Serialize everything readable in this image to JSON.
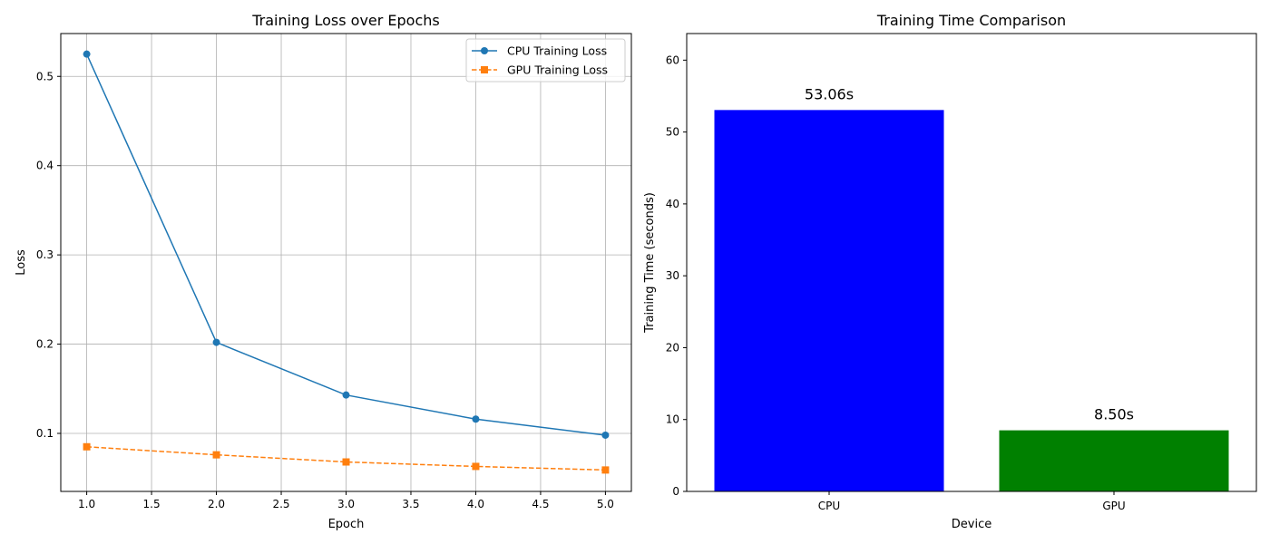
{
  "chart_data": [
    {
      "type": "line",
      "title": "Training Loss over Epochs",
      "xlabel": "Epoch",
      "ylabel": "Loss",
      "xlim": [
        0.8,
        5.2
      ],
      "ylim": [
        0.035,
        0.548
      ],
      "xticks": [
        1.0,
        1.5,
        2.0,
        2.5,
        3.0,
        3.5,
        4.0,
        4.5,
        5.0
      ],
      "xtick_labels": [
        "1.0",
        "1.5",
        "2.0",
        "2.5",
        "3.0",
        "3.5",
        "4.0",
        "4.5",
        "5.0"
      ],
      "yticks": [
        0.1,
        0.2,
        0.3,
        0.4,
        0.5
      ],
      "ytick_labels": [
        "0.1",
        "0.2",
        "0.3",
        "0.4",
        "0.5"
      ],
      "grid": true,
      "legend": "top-right",
      "x": [
        1,
        2,
        3,
        4,
        5
      ],
      "series": [
        {
          "name": "CPU Training Loss",
          "values": [
            0.525,
            0.202,
            0.143,
            0.116,
            0.098
          ],
          "color": "#1f77b4",
          "marker": "circle",
          "linestyle": "solid"
        },
        {
          "name": "GPU Training Loss",
          "values": [
            0.085,
            0.076,
            0.068,
            0.063,
            0.059
          ],
          "color": "#ff7f0e",
          "marker": "square",
          "linestyle": "dashed"
        }
      ]
    },
    {
      "type": "bar",
      "title": "Training Time Comparison",
      "xlabel": "Device",
      "ylabel": "Training Time (seconds)",
      "categories": [
        "CPU",
        "GPU"
      ],
      "values": [
        53.06,
        8.5
      ],
      "value_labels": [
        "53.06s",
        "8.50s"
      ],
      "colors": [
        "#0000ff",
        "#008000"
      ],
      "ylim": [
        0,
        63.7
      ],
      "yticks": [
        0,
        10,
        20,
        30,
        40,
        50,
        60
      ],
      "ytick_labels": [
        "0",
        "10",
        "20",
        "30",
        "40",
        "50",
        "60"
      ],
      "grid": false
    }
  ]
}
